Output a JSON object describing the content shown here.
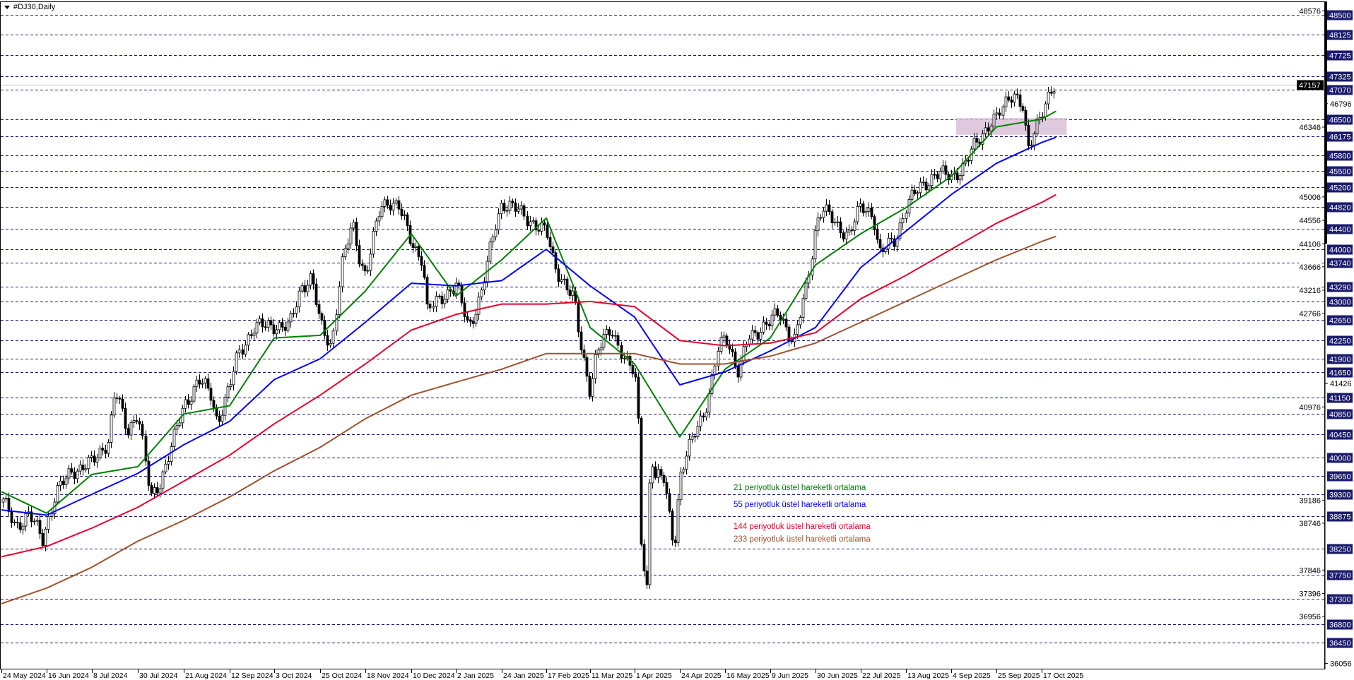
{
  "window": {
    "title": "#DJ30,Daily",
    "menu_icon": "triangle-down-icon"
  },
  "colors": {
    "grid_level": "#1a1a6e",
    "label_bg": "#1a1a6e",
    "ema21": "#008000",
    "ema55": "#0000ff",
    "ema144": "#e8002a",
    "ema233": "#a0522d",
    "zone": "#d8bfd8",
    "current_price_line": "#c0c0c0"
  },
  "chart_data": {
    "type": "candlestick",
    "symbol": "#DJ30",
    "timeframe": "Daily",
    "ylim": [
      36056,
      48576
    ],
    "grid": false,
    "x_tick_labels": [
      "24 May 2024",
      "16 Jun 2024",
      "8 Jul 2024",
      "30 Jul 2024",
      "21 Aug 2024",
      "12 Sep 2024",
      "3 Oct 2024",
      "25 Oct 2024",
      "18 Nov 2024",
      "10 Dec 2024",
      "2 Jan 2025",
      "24 Jan 2025",
      "17 Feb 2025",
      "11 Mar 2025",
      "1 Apr 2025",
      "24 Apr 2025",
      "16 May 2025",
      "9 Jun 2025",
      "30 Jun 2025",
      "22 Jul 2025",
      "13 Aug 2025",
      "4 Sep 2025",
      "25 Sep 2025",
      "17 Oct 2025"
    ],
    "x_tick_dates": [
      "2024-05-24",
      "2024-06-16",
      "2024-07-08",
      "2024-07-30",
      "2024-08-21",
      "2024-09-12",
      "2024-10-03",
      "2024-10-25",
      "2024-11-18",
      "2024-12-10",
      "2025-01-02",
      "2025-01-24",
      "2025-02-17",
      "2025-03-11",
      "2025-04-01",
      "2025-04-24",
      "2025-05-16",
      "2025-06-09",
      "2025-06-30",
      "2025-07-22",
      "2025-08-13",
      "2025-09-04",
      "2025-09-25",
      "2025-10-17"
    ],
    "y_tick_labels": [
      48576,
      46796,
      46346,
      45006,
      44556,
      44106,
      43666,
      43216,
      42766,
      41426,
      40976,
      39186,
      38746,
      37846,
      37396,
      36956,
      36056
    ],
    "levels": [
      48500,
      48125,
      47725,
      47325,
      47070,
      46500,
      46175,
      45800,
      45500,
      45200,
      44820,
      44400,
      44000,
      43740,
      43290,
      43000,
      42650,
      42250,
      41900,
      41650,
      41150,
      40850,
      40450,
      40000,
      39650,
      39300,
      38875,
      38250,
      37750,
      37300,
      36800,
      36450
    ],
    "current_price": 47157,
    "zone": {
      "from_date": "2025-09-04",
      "to_date": "2025-10-24",
      "low": 46200,
      "high": 46520
    },
    "close_path": [
      [
        "2024-05-24",
        39200
      ],
      [
        "2024-05-31",
        38700
      ],
      [
        "2024-06-07",
        38900
      ],
      [
        "2024-06-14",
        38450
      ],
      [
        "2024-06-20",
        39300
      ],
      [
        "2024-06-28",
        39750
      ],
      [
        "2024-07-08",
        39900
      ],
      [
        "2024-07-16",
        40350
      ],
      [
        "2024-07-19",
        41300
      ],
      [
        "2024-07-25",
        40500
      ],
      [
        "2024-07-30",
        40900
      ],
      [
        "2024-08-05",
        39200
      ],
      [
        "2024-08-09",
        39500
      ],
      [
        "2024-08-16",
        40350
      ],
      [
        "2024-08-21",
        41000
      ],
      [
        "2024-08-28",
        41500
      ],
      [
        "2024-09-03",
        41200
      ],
      [
        "2024-09-06",
        40700
      ],
      [
        "2024-09-12",
        41350
      ],
      [
        "2024-09-16",
        42000
      ],
      [
        "2024-09-23",
        42500
      ],
      [
        "2024-10-03",
        42550
      ],
      [
        "2024-10-10",
        42500
      ],
      [
        "2024-10-16",
        43300
      ],
      [
        "2024-10-21",
        43450
      ],
      [
        "2024-10-25",
        42550
      ],
      [
        "2024-10-31",
        42150
      ],
      [
        "2024-11-05",
        43650
      ],
      [
        "2024-11-11",
        44500
      ],
      [
        "2024-11-15",
        43800
      ],
      [
        "2024-11-18",
        43500
      ],
      [
        "2024-11-25",
        44800
      ],
      [
        "2024-11-29",
        44950
      ],
      [
        "2024-12-04",
        44800
      ],
      [
        "2024-12-10",
        44150
      ],
      [
        "2024-12-16",
        43800
      ],
      [
        "2024-12-18",
        42800
      ],
      [
        "2024-12-27",
        43150
      ],
      [
        "2025-01-02",
        43300
      ],
      [
        "2025-01-08",
        42500
      ],
      [
        "2025-01-14",
        43150
      ],
      [
        "2025-01-21",
        44480
      ],
      [
        "2025-01-24",
        44900
      ],
      [
        "2025-01-30",
        44800
      ],
      [
        "2025-02-05",
        44650
      ],
      [
        "2025-02-17",
        44300
      ],
      [
        "2025-02-21",
        43700
      ],
      [
        "2025-03-03",
        43000
      ],
      [
        "2025-03-06",
        42200
      ],
      [
        "2025-03-11",
        41300
      ],
      [
        "2025-03-14",
        42000
      ],
      [
        "2025-03-21",
        42500
      ],
      [
        "2025-03-28",
        41800
      ],
      [
        "2025-04-01",
        41600
      ],
      [
        "2025-04-03",
        40500
      ],
      [
        "2025-04-04",
        38500
      ],
      [
        "2025-04-07",
        37500
      ],
      [
        "2025-04-09",
        40200
      ],
      [
        "2025-04-11",
        39600
      ],
      [
        "2025-04-16",
        39600
      ],
      [
        "2025-04-21",
        38300
      ],
      [
        "2025-04-24",
        39600
      ],
      [
        "2025-05-01",
        40500
      ],
      [
        "2025-05-08",
        41100
      ],
      [
        "2025-05-12",
        42000
      ],
      [
        "2025-05-16",
        42400
      ],
      [
        "2025-05-23",
        41600
      ],
      [
        "2025-05-28",
        42300
      ],
      [
        "2025-06-04",
        42500
      ],
      [
        "2025-06-09",
        42600
      ],
      [
        "2025-06-13",
        42800
      ],
      [
        "2025-06-20",
        42200
      ],
      [
        "2025-06-26",
        43300
      ],
      [
        "2025-06-30",
        44500
      ],
      [
        "2025-07-03",
        44800
      ],
      [
        "2025-07-10",
        44450
      ],
      [
        "2025-07-16",
        44300
      ],
      [
        "2025-07-22",
        44800
      ],
      [
        "2025-07-28",
        44700
      ],
      [
        "2025-07-31",
        43900
      ],
      [
        "2025-08-08",
        44200
      ],
      [
        "2025-08-13",
        44850
      ],
      [
        "2025-08-20",
        45200
      ],
      [
        "2025-08-27",
        45450
      ],
      [
        "2025-09-04",
        45400
      ],
      [
        "2025-09-10",
        45600
      ],
      [
        "2025-09-15",
        46000
      ],
      [
        "2025-09-22",
        46450
      ],
      [
        "2025-09-25",
        46500
      ],
      [
        "2025-10-03",
        47050
      ],
      [
        "2025-10-08",
        46700
      ],
      [
        "2025-10-10",
        45800
      ],
      [
        "2025-10-14",
        46350
      ],
      [
        "2025-10-17",
        46700
      ],
      [
        "2025-10-21",
        47000
      ],
      [
        "2025-10-24",
        47100
      ]
    ],
    "series": [
      {
        "name": "21 periyotluk üstel hareketli ortalama",
        "color_key": "ema21",
        "values": [
          39350,
          38936,
          39680,
          39830,
          40840,
          41000,
          42300,
          42350,
          43200,
          44300,
          43100,
          43800,
          44600,
          42500,
          41800,
          40400,
          41700,
          42300,
          43700,
          44300,
          44800,
          45400,
          46350,
          46500,
          46650
        ]
      },
      {
        "name": "55 periyotluk üstel hareketli ortalama",
        "color_key": "ema55",
        "values": [
          39000,
          38900,
          39300,
          39700,
          40250,
          40700,
          41500,
          41900,
          42600,
          43350,
          43300,
          43400,
          44000,
          43300,
          42700,
          41400,
          41650,
          42050,
          42500,
          43650,
          44350,
          45050,
          45650,
          46050,
          46150
        ]
      },
      {
        "name": "144 periyotluk üstel hareketli ortalama",
        "color_key": "ema144",
        "values": [
          38100,
          38300,
          38650,
          39050,
          39550,
          40050,
          40650,
          41200,
          41800,
          42450,
          42750,
          42950,
          42950,
          43000,
          42900,
          42250,
          42150,
          42200,
          42400,
          43050,
          43500,
          44000,
          44500,
          44900,
          45050
        ]
      },
      {
        "name": "233 periyotluk üstel hareketli ortalama",
        "color_key": "ema233",
        "values": [
          37200,
          37500,
          37900,
          38400,
          38800,
          39250,
          39750,
          40200,
          40750,
          41200,
          41450,
          41700,
          42000,
          42000,
          42000,
          41800,
          41800,
          41950,
          42200,
          42600,
          43000,
          43400,
          43800,
          44150,
          44250
        ]
      }
    ],
    "series_dates": [
      "2024-05-24",
      "2024-06-16",
      "2024-07-08",
      "2024-07-30",
      "2024-08-21",
      "2024-09-12",
      "2024-10-03",
      "2024-10-25",
      "2024-11-18",
      "2024-12-10",
      "2025-01-02",
      "2025-01-24",
      "2025-02-17",
      "2025-03-11",
      "2025-04-01",
      "2025-04-24",
      "2025-05-16",
      "2025-06-09",
      "2025-06-30",
      "2025-07-22",
      "2025-08-13",
      "2025-09-04",
      "2025-09-25",
      "2025-10-17",
      "2025-10-24"
    ]
  }
}
